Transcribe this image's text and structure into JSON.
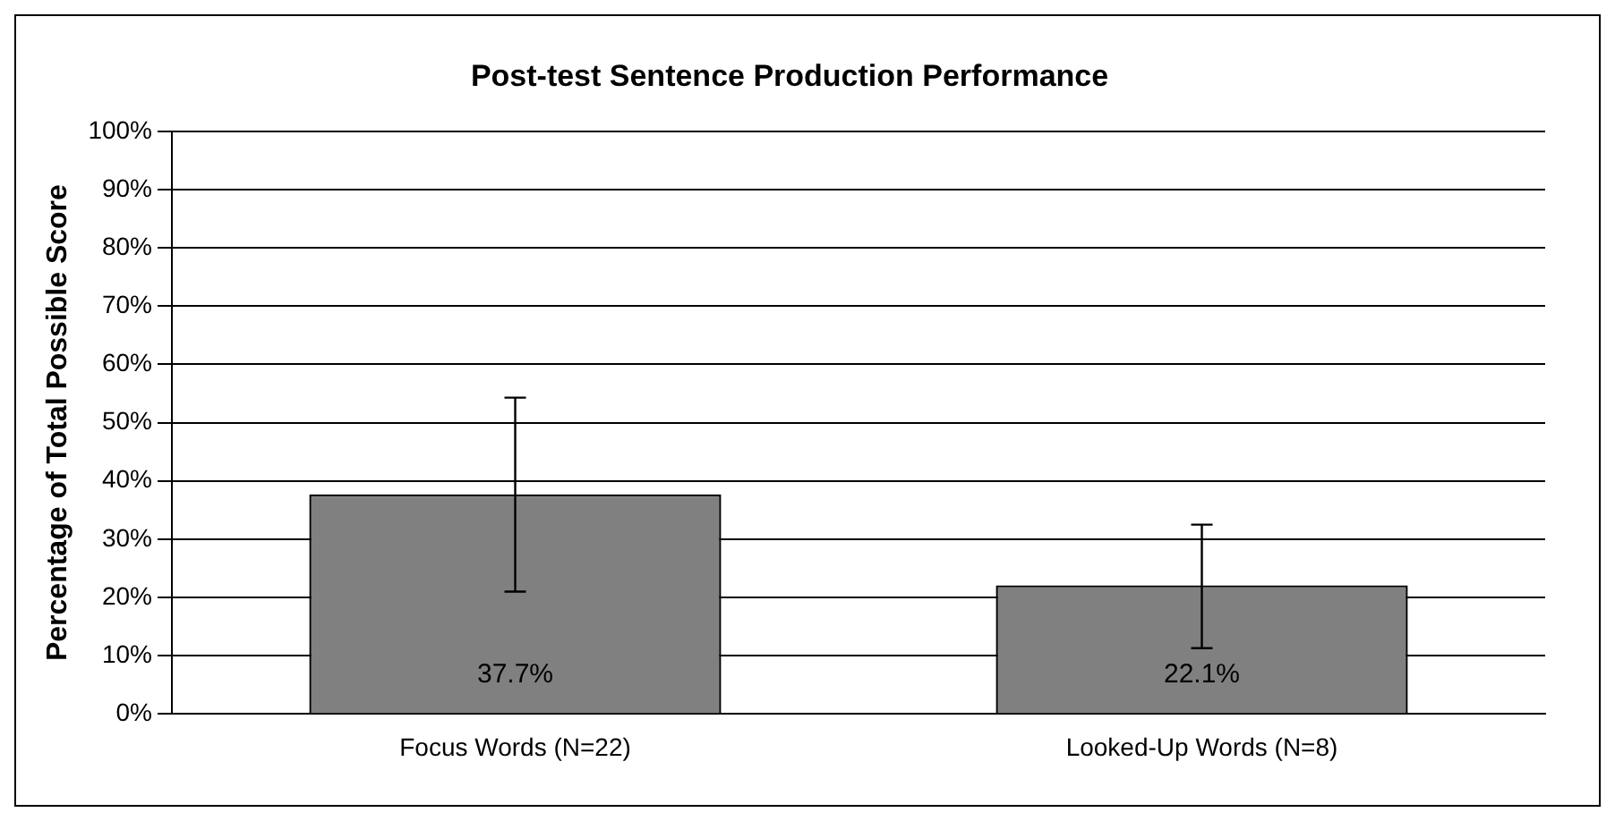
{
  "chart_data": {
    "type": "bar",
    "title": "Post-test Sentence Production Performance",
    "ylabel": "Percentage of Total Possible Score",
    "categories": [
      "Focus Words (N=22)",
      "Looked-Up Words (N=8)"
    ],
    "values": [
      37.7,
      22.1
    ],
    "color": "#808080",
    "errors": [
      [
        21,
        54.3
      ],
      [
        11.3,
        32.5
      ]
    ],
    "value_labels": [
      "37.7%",
      "22.1%"
    ],
    "ylim": [
      0,
      100
    ],
    "yticks": [
      {
        "value": 0,
        "label": "0%"
      },
      {
        "value": 10,
        "label": "10%"
      },
      {
        "value": 20,
        "label": "20%"
      },
      {
        "value": 30,
        "label": "30%"
      },
      {
        "value": 40,
        "label": "40%"
      },
      {
        "value": 50,
        "label": "50%"
      },
      {
        "value": 60,
        "label": "60%"
      },
      {
        "value": 70,
        "label": "70%"
      },
      {
        "value": 80,
        "label": "80%"
      },
      {
        "value": 90,
        "label": "90%"
      },
      {
        "value": 100,
        "label": "100%"
      }
    ],
    "grid": "y",
    "legend": false
  }
}
